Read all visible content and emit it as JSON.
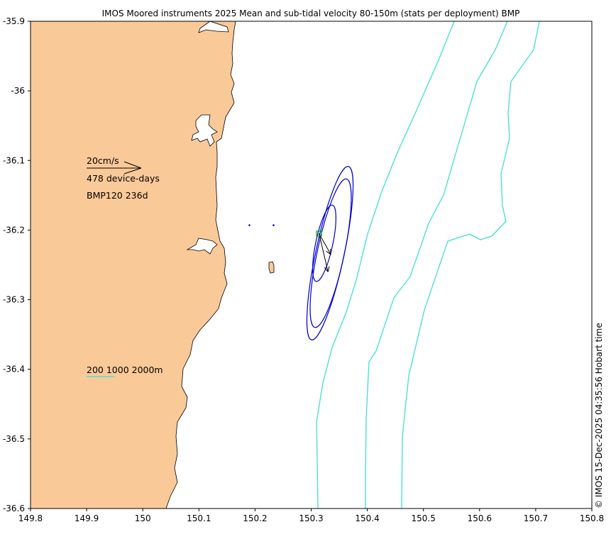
{
  "title": "IMOS Moored instruments 2025 Mean and sub-tidal velocity 80-150m (stats per deployment) BMP",
  "axes": {
    "lon_range": [
      149.8,
      150.8
    ],
    "lat_range": [
      -36.6,
      -35.9
    ],
    "x_ticks": [
      "149.8",
      "149.9",
      "150",
      "150.1",
      "150.2",
      "150.3",
      "150.4",
      "150.5",
      "150.6",
      "150.7",
      "150.8"
    ],
    "y_ticks": [
      "-35.9",
      "-36",
      "-36.1",
      "-36.2",
      "-36.3",
      "-36.4",
      "-36.5",
      "-36.6"
    ]
  },
  "legend": {
    "scale_label": "20cm/s",
    "device_days": "478 device-days",
    "station_label": "BMP120 236d",
    "isobath_label": "200 1000 2000m"
  },
  "credit": "© IMOS 15-Dec-2025 04:35:56 Hobart time",
  "colors": {
    "land": "#fac998",
    "isobath": "#40e0d0",
    "ellipse": "#0000cc",
    "arrow": "#000000",
    "mooring": "#00aa00",
    "dots": "#0000cc"
  },
  "map_data": {
    "mooring": {
      "name": "BMP120",
      "lon": 150.314,
      "lat": -36.205
    },
    "mean_vectors": [
      {
        "lon": 150.314,
        "lat": -36.205,
        "to_lon": 150.33,
        "to_lat": -36.26
      },
      {
        "lon": 150.314,
        "lat": -36.205,
        "to_lon": 150.335,
        "to_lat": -36.235
      }
    ],
    "dots": [
      {
        "lon": 150.19,
        "lat": -36.193
      },
      {
        "lon": 150.233,
        "lat": -36.193
      }
    ]
  }
}
